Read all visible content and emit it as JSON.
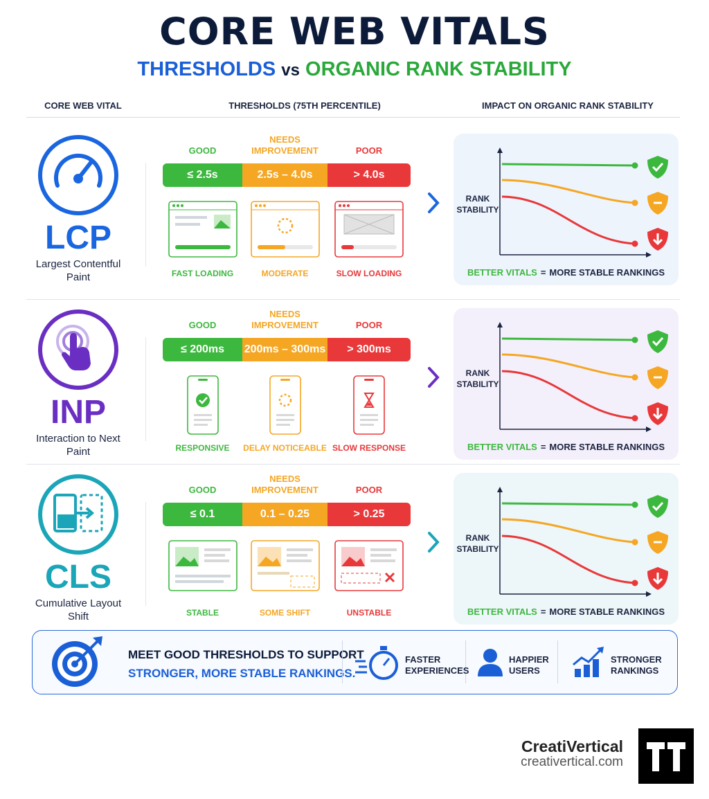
{
  "header": {
    "title": "CORE WEB VITALS",
    "subtitle_left": "THRESHOLDS",
    "subtitle_vs": "vs",
    "subtitle_right": "ORGANIC RANK STABILITY"
  },
  "columns": [
    "CORE WEB VITAL",
    "THRESHOLDS (75TH PERCENTILE)",
    "IMPACT ON ORGANIC RANK STABILITY"
  ],
  "rows": [
    {
      "acronym": "LCP",
      "name": "Largest Contentful Paint",
      "levels": [
        {
          "label": "GOOD",
          "threshold": "≤ 2.5s",
          "caption": "FAST LOADING"
        },
        {
          "label": "NEEDS IMPROVEMENT",
          "threshold": "2.5s – 4.0s",
          "caption": "MODERATE"
        },
        {
          "label": "POOR",
          "threshold": "> 4.0s",
          "caption": "SLOW LOADING"
        }
      ],
      "chart": {
        "axis_label": "RANK STABILITY",
        "footer_left": "BETTER VITALS",
        "footer_eq": "=",
        "footer_right": "MORE STABLE RANKINGS"
      }
    },
    {
      "acronym": "INP",
      "name": "Interaction to Next Paint",
      "levels": [
        {
          "label": "GOOD",
          "threshold": "≤ 200ms",
          "caption": "RESPONSIVE"
        },
        {
          "label": "NEEDS IMPROVEMENT",
          "threshold": "200ms – 300ms",
          "caption": "DELAY NOTICEABLE"
        },
        {
          "label": "POOR",
          "threshold": "> 300ms",
          "caption": "SLOW RESPONSE"
        }
      ],
      "chart": {
        "axis_label": "RANK STABILITY",
        "footer_left": "BETTER VITALS",
        "footer_eq": "=",
        "footer_right": "MORE STABLE RANKINGS"
      }
    },
    {
      "acronym": "CLS",
      "name": "Cumulative Layout Shift",
      "levels": [
        {
          "label": "GOOD",
          "threshold": "≤ 0.1",
          "caption": "STABLE"
        },
        {
          "label": "NEEDS IMPROVEMENT",
          "threshold": "0.1 – 0.25",
          "caption": "SOME SHIFT"
        },
        {
          "label": "POOR",
          "threshold": "> 0.25",
          "caption": "UNSTABLE"
        }
      ],
      "chart": {
        "axis_label": "RANK STABILITY",
        "footer_left": "BETTER VITALS",
        "footer_eq": "=",
        "footer_right": "MORE STABLE RANKINGS"
      }
    }
  ],
  "banner": {
    "line1": "MEET GOOD THRESHOLDS TO SUPPORT",
    "line2": "STRONGER, MORE STABLE RANKINGS.",
    "benefits": [
      "FASTER EXPERIENCES",
      "HAPPIER USERS",
      "STRONGER RANKINGS"
    ]
  },
  "brand": {
    "name": "CreatiVertical",
    "url": "creativertical.com"
  }
}
